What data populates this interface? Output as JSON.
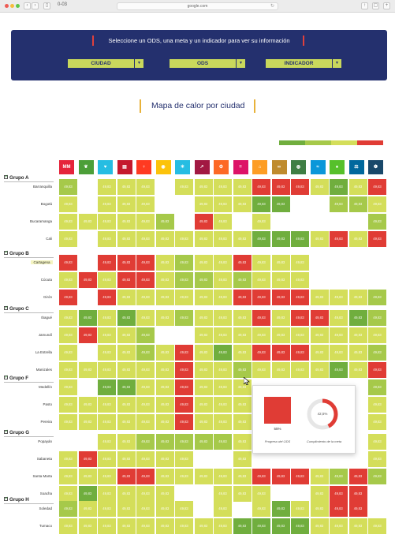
{
  "browser": {
    "tab_title": "0-03",
    "url": "google.com"
  },
  "header": {
    "title": "Seleccione un ODS, una meta y un indicador para ver su información",
    "selects": [
      {
        "label": "CIUDAD"
      },
      {
        "label": "ODS"
      },
      {
        "label": "INDICADOR"
      }
    ]
  },
  "heatmap": {
    "title": "Mapa de calor por ciudad",
    "legend_colors": [
      "#70ae3e",
      "#a6c94a",
      "#d4de5a",
      "#e03c35"
    ],
    "sdg_colors": [
      "#e5243b",
      "#4c9f38",
      "#26bde2",
      "#c5192d",
      "#ff3a21",
      "#fcc30b",
      "#26bde2",
      "#a21942",
      "#fd6925",
      "#dd1367",
      "#fd9d24",
      "#bf8b2e",
      "#3f7e44",
      "#0a97d9",
      "#56c02b",
      "#00689d",
      "#19486a"
    ],
    "sdg_icon_glyphs": [
      "ΜΜ",
      "❦",
      "♥",
      "▤",
      "♀",
      "◉",
      "☀",
      "↗",
      "⚙",
      "=",
      "⌂",
      "∞",
      "◍",
      "≈",
      "♠",
      "⚖",
      "❁"
    ],
    "groups": [
      {
        "label": "Grupo A",
        "cities": [
          {
            "name": "Barranquilla",
            "cells": [
              1,
              -1,
              0,
              0,
              0,
              -1,
              0,
              0,
              0,
              0,
              3,
              3,
              3,
              0,
              2,
              0,
              3
            ]
          },
          {
            "name": "Bogotá",
            "cells": [
              0,
              -1,
              0,
              0,
              0,
              -1,
              -1,
              0,
              0,
              0,
              2,
              2,
              -1,
              -1,
              1,
              1,
              0
            ]
          },
          {
            "name": "Bucaramanga",
            "cells": [
              0,
              0,
              0,
              0,
              0,
              1,
              -1,
              3,
              0,
              -1,
              0,
              -1,
              -1,
              -1,
              -1,
              -1,
              1
            ]
          },
          {
            "name": "Cali",
            "cells": [
              0,
              -1,
              0,
              0,
              0,
              0,
              0,
              0,
              0,
              0,
              2,
              2,
              2,
              0,
              3,
              0,
              3
            ]
          }
        ]
      },
      {
        "label": "Grupo B",
        "cities": [
          {
            "name": "Cartagena",
            "highlight": true,
            "cells": [
              3,
              -1,
              3,
              3,
              3,
              0,
              1,
              0,
              0,
              3,
              0,
              0,
              0,
              -1,
              -1,
              -1,
              -1
            ]
          },
          {
            "name": "Cúcuta",
            "cells": [
              0,
              3,
              0,
              3,
              3,
              0,
              1,
              1,
              0,
              1,
              0,
              0,
              0,
              -1,
              -1,
              -1,
              -1
            ]
          },
          {
            "name": "Girón",
            "cells": [
              3,
              -1,
              3,
              0,
              0,
              0,
              0,
              0,
              0,
              3,
              3,
              3,
              3,
              0,
              0,
              0,
              1
            ]
          }
        ]
      },
      {
        "label": "Grupo C",
        "cities": [
          {
            "name": "Ibagué",
            "cells": [
              0,
              2,
              0,
              2,
              0,
              0,
              1,
              0,
              0,
              0,
              3,
              0,
              3,
              3,
              0,
              2,
              1
            ]
          },
          {
            "name": "Jamundí",
            "cells": [
              0,
              3,
              0,
              0,
              1,
              -1,
              -1,
              0,
              0,
              0,
              0,
              0,
              0,
              0,
              0,
              0,
              0
            ]
          },
          {
            "name": "La Estrella",
            "cells": [
              0,
              -1,
              0,
              0,
              1,
              0,
              3,
              0,
              2,
              0,
              3,
              3,
              3,
              0,
              0,
              0,
              1
            ]
          },
          {
            "name": "Manizales",
            "cells": [
              0,
              0,
              0,
              0,
              0,
              0,
              3,
              0,
              0,
              1,
              0,
              0,
              0,
              0,
              2,
              0,
              3
            ]
          }
        ]
      },
      {
        "label": "Grupo F",
        "cities": [
          {
            "name": "Medellín",
            "cells": [
              0,
              -1,
              2,
              2,
              0,
              0,
              3,
              0,
              0,
              0,
              -1,
              -1,
              -1,
              -1,
              -1,
              -1,
              1
            ]
          },
          {
            "name": "Pasto",
            "cells": [
              0,
              0,
              0,
              0,
              0,
              0,
              3,
              0,
              0,
              0,
              -1,
              -1,
              -1,
              -1,
              -1,
              -1,
              0
            ]
          },
          {
            "name": "Pereira",
            "cells": [
              0,
              0,
              0,
              0,
              0,
              0,
              3,
              0,
              0,
              0,
              -1,
              -1,
              -1,
              -1,
              -1,
              -1,
              0
            ]
          }
        ]
      },
      {
        "label": "Grupo G",
        "cities": [
          {
            "name": "Popayán",
            "cells": [
              -1,
              -1,
              0,
              0,
              1,
              1,
              1,
              1,
              1,
              0,
              -1,
              -1,
              -1,
              -1,
              -1,
              -1,
              0
            ]
          },
          {
            "name": "Sabaneta",
            "cells": [
              0,
              3,
              0,
              0,
              0,
              0,
              0,
              -1,
              -1,
              0,
              -1,
              -1,
              -1,
              -1,
              -1,
              -1,
              0
            ]
          },
          {
            "name": "Santa Marta",
            "cells": [
              0,
              0,
              0,
              3,
              3,
              0,
              0,
              0,
              0,
              0,
              3,
              3,
              3,
              0,
              1,
              3,
              1
            ]
          },
          {
            "name": "Soacha",
            "cells": [
              0,
              2,
              0,
              0,
              0,
              0,
              -1,
              -1,
              0,
              0,
              0,
              -1,
              -1,
              0,
              3,
              3,
              -1
            ]
          }
        ]
      },
      {
        "label": "Grupo H",
        "cities": [
          {
            "name": "Soledad",
            "cells": [
              1,
              0,
              0,
              0,
              0,
              0,
              0,
              -1,
              0,
              -1,
              0,
              2,
              0,
              0,
              3,
              3,
              -1
            ]
          },
          {
            "name": "Tumaco",
            "cells": [
              0,
              0,
              0,
              0,
              0,
              0,
              0,
              0,
              0,
              2,
              2,
              2,
              2,
              0,
              0,
              0,
              0
            ]
          }
        ]
      }
    ],
    "cell_value": "49,83"
  },
  "popup": {
    "progress_value": "55%",
    "progress_label": "Progreso del ODS",
    "ring_value": "42,5%",
    "ring_fraction": 0.425,
    "ring_label": "Cumplimiento de la meta"
  }
}
